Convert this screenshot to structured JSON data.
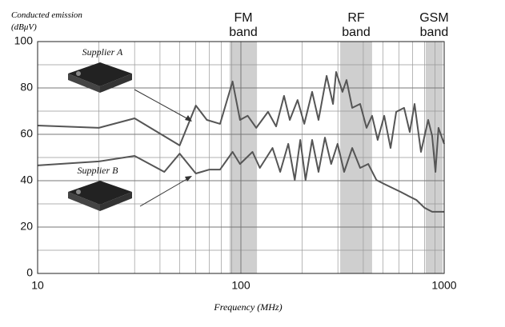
{
  "chart_data": {
    "type": "line",
    "y_label": "Conducted emission (dBμV)",
    "x_label": "Frequency (MHz)",
    "log_x": true,
    "grid": true,
    "xlim": [
      10,
      1000
    ],
    "xticks": [
      10,
      100,
      1000
    ],
    "minor_xticks": [
      20,
      30,
      40,
      50,
      60,
      70,
      80,
      90,
      200,
      300,
      400,
      500,
      600,
      700,
      800,
      900
    ],
    "ylim": [
      0,
      100
    ],
    "yticks": [
      0,
      20,
      40,
      60,
      80,
      100
    ],
    "minor_yticks": [
      10,
      30,
      50,
      70,
      90
    ],
    "bands": [
      {
        "label": "FM band",
        "range": [
          88,
          120
        ]
      },
      {
        "label": "RF band",
        "range": [
          308,
          442
        ]
      },
      {
        "label": "GSM band",
        "range": [
          811,
          982
        ]
      }
    ],
    "series": [
      {
        "name": "Supplier A",
        "color": "#555555",
        "x": [
          10,
          20,
          30,
          50,
          60,
          68,
          79,
          91,
          99,
          108,
          119,
          136,
          149,
          163,
          174,
          190,
          205,
          224,
          241,
          264,
          284,
          294,
          316,
          331,
          353,
          386,
          415,
          442,
          471,
          507,
          545,
          581,
          635,
          677,
          715,
          769,
          834,
          873,
          906,
          938,
          1000
        ],
        "values": [
          63.8,
          62.8,
          66.9,
          55.2,
          72.4,
          66.2,
          64.5,
          82.8,
          66.2,
          68,
          62.8,
          69.7,
          63.4,
          76.6,
          66.2,
          74.8,
          64.5,
          78.3,
          66.2,
          85.2,
          73.1,
          86.9,
          78.3,
          83.4,
          71.4,
          73.1,
          62.8,
          68,
          57.6,
          68,
          54.1,
          69.7,
          71.4,
          61,
          73.1,
          52.4,
          66.2,
          59.3,
          43.8,
          62.8,
          55.9
        ]
      },
      {
        "name": "Supplier B",
        "color": "#555555",
        "x": [
          10,
          20,
          30,
          42,
          50,
          60,
          70,
          79,
          91,
          99,
          114,
          124,
          143,
          156,
          171,
          184,
          196,
          208,
          224,
          241,
          259,
          278,
          299,
          322,
          353,
          386,
          423,
          464,
          507,
          556,
          609,
          667,
          730,
          800,
          873,
          1000
        ],
        "values": [
          46.6,
          48.3,
          50.7,
          43.8,
          51.7,
          43.1,
          44.8,
          44.8,
          52.4,
          47.2,
          52.4,
          45.5,
          54.1,
          43.8,
          55.9,
          40.3,
          57.6,
          40.3,
          57.6,
          43.8,
          58.6,
          47.2,
          55.9,
          43.8,
          54.1,
          45.5,
          47.2,
          40.3,
          38.6,
          36.9,
          35.2,
          33.4,
          31.7,
          28.3,
          26.6,
          26.6
        ]
      }
    ]
  }
}
